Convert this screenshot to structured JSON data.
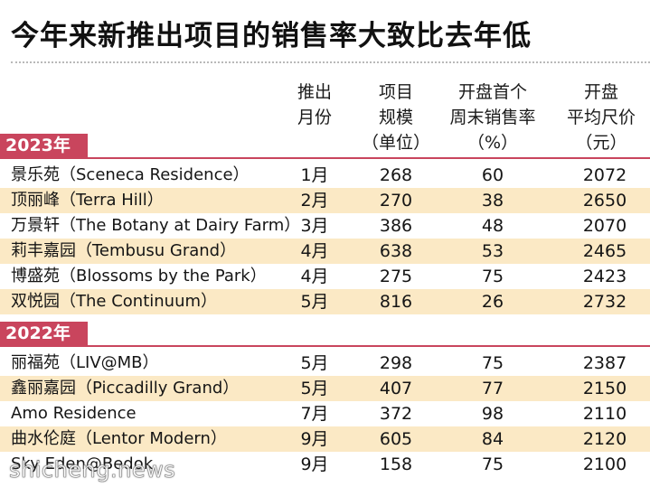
{
  "title": "今年来新推出项目的销售率大致比去年低",
  "headers": {
    "month": [
      "推出",
      "月份"
    ],
    "units": [
      "项目",
      "规模",
      "（单位）"
    ],
    "rate": [
      "开盘首个",
      "周末销售率",
      "（%）"
    ],
    "price": [
      "开盘",
      "平均尺价",
      "（元）"
    ]
  },
  "groups": [
    {
      "year": "2023年",
      "rows": [
        {
          "name": "景乐苑（Sceneca Residence）",
          "month": "1月",
          "units": "268",
          "rate": "60",
          "price": "2072"
        },
        {
          "name": "顶丽峰（Terra Hill）",
          "month": "2月",
          "units": "270",
          "rate": "38",
          "price": "2650"
        },
        {
          "name": "万景轩（The Botany at Dairy Farm）",
          "month": "3月",
          "units": "386",
          "rate": "48",
          "price": "2070"
        },
        {
          "name": "莉丰嘉园（Tembusu Grand）",
          "month": "4月",
          "units": "638",
          "rate": "53",
          "price": "2465"
        },
        {
          "name": "博盛苑（Blossoms by the Park）",
          "month": "4月",
          "units": "275",
          "rate": "75",
          "price": "2423"
        },
        {
          "name": "双悦园（The Continuum）",
          "month": "5月",
          "units": "816",
          "rate": "26",
          "price": "2732"
        }
      ]
    },
    {
      "year": "2022年",
      "rows": [
        {
          "name": "丽福苑（LIV@MB）",
          "month": "5月",
          "units": "298",
          "rate": "75",
          "price": "2387"
        },
        {
          "name": "鑫丽嘉园（Piccadilly Grand）",
          "month": "5月",
          "units": "407",
          "rate": "77",
          "price": "2150"
        },
        {
          "name": "Amo Residence",
          "month": "7月",
          "units": "372",
          "rate": "98",
          "price": "2110"
        },
        {
          "name": "曲水伦庭（Lentor Modern）",
          "month": "9月",
          "units": "605",
          "rate": "84",
          "price": "2120"
        },
        {
          "name": "Sky Eden@Bedok",
          "month": "9月",
          "units": "158",
          "rate": "75",
          "price": "2100"
        }
      ]
    }
  ],
  "watermark": "shicheng.news",
  "colors": {
    "accent": "#c9455d",
    "row_shade": "#fbe9c5"
  }
}
